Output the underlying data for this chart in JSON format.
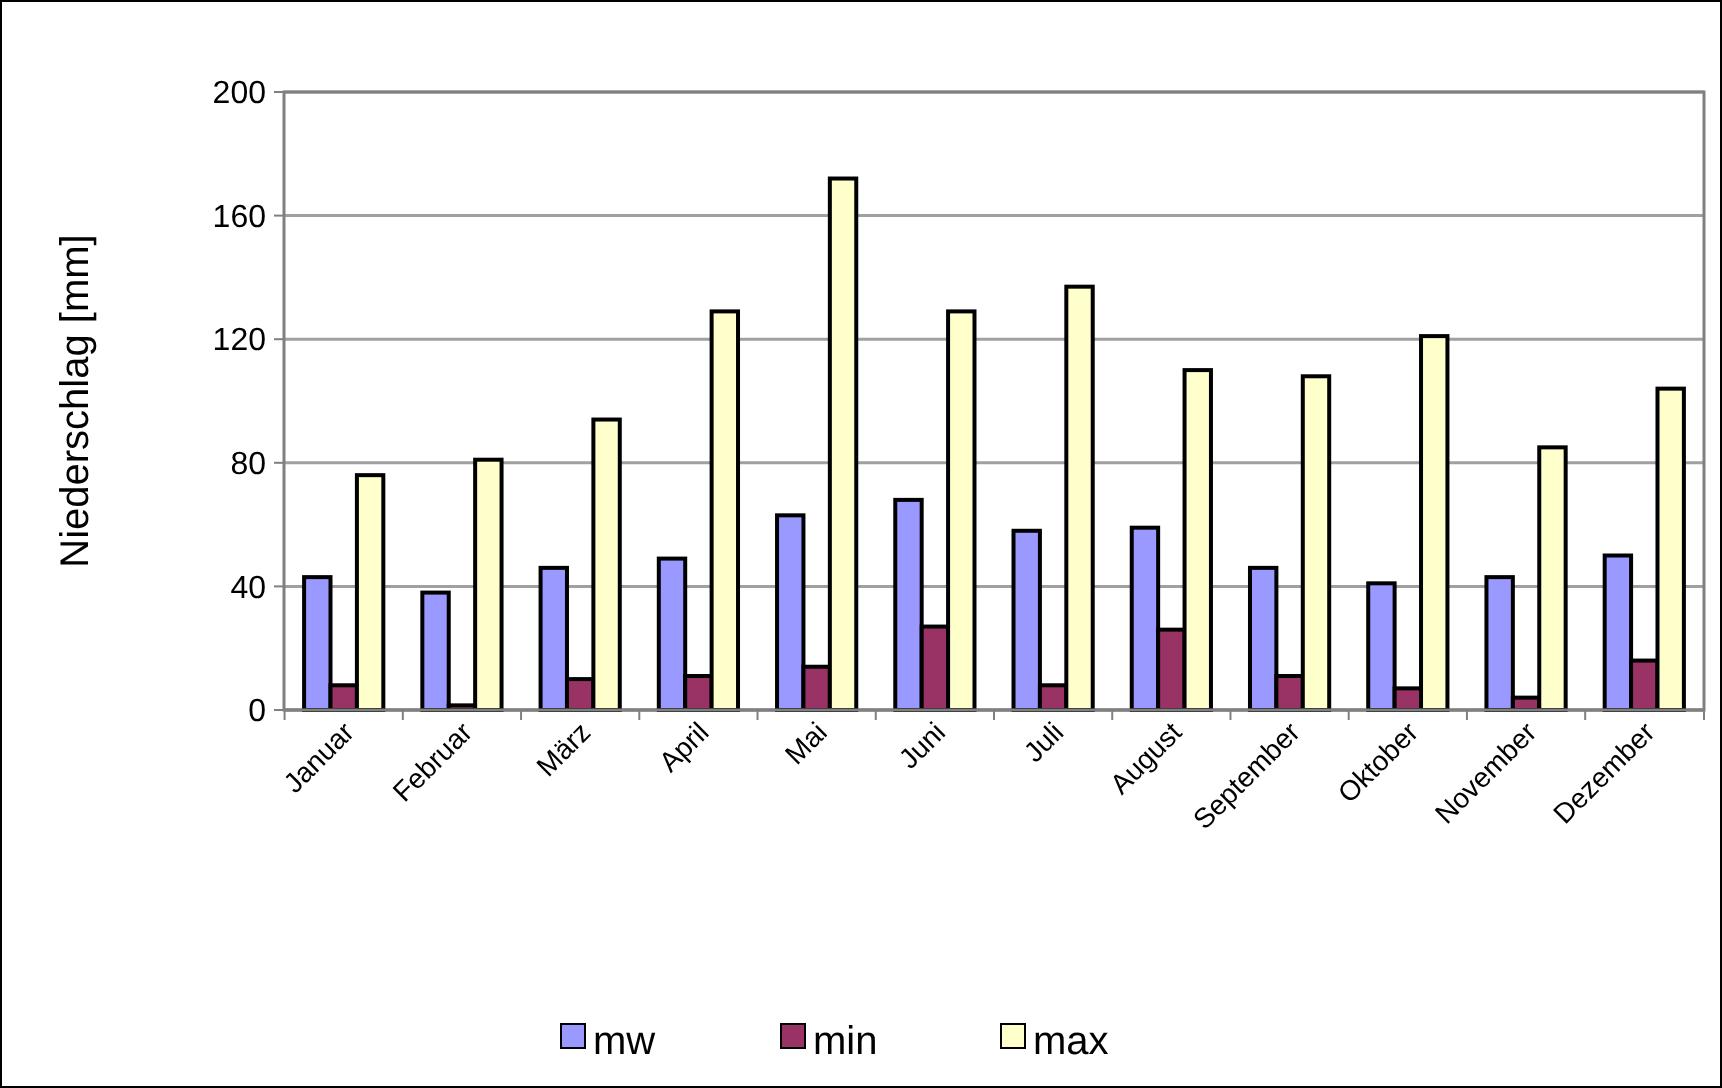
{
  "chart_data": {
    "type": "bar",
    "ylabel": "Niederschlag [mm]",
    "categories": [
      "Januar",
      "Februar",
      "März",
      "April",
      "Mai",
      "Juni",
      "Juli",
      "August",
      "September",
      "Oktober",
      "November",
      "Dezember"
    ],
    "series": [
      {
        "name": "mw",
        "color": "#9999ff",
        "values": [
          43,
          38,
          46,
          49,
          63,
          68,
          58,
          59,
          46,
          41,
          43,
          50
        ]
      },
      {
        "name": "min",
        "color": "#993366",
        "values": [
          8,
          1.5,
          10,
          11,
          14,
          27,
          8,
          26,
          11,
          7,
          4,
          16
        ]
      },
      {
        "name": "max",
        "color": "#ffffcc",
        "values": [
          76,
          81,
          94,
          129,
          172,
          129,
          137,
          110,
          108,
          121,
          85,
          104
        ]
      }
    ],
    "ylim": [
      0,
      200
    ],
    "yticks": [
      0,
      40,
      80,
      120,
      160,
      200
    ],
    "grid": "y",
    "legend": "bottom"
  }
}
